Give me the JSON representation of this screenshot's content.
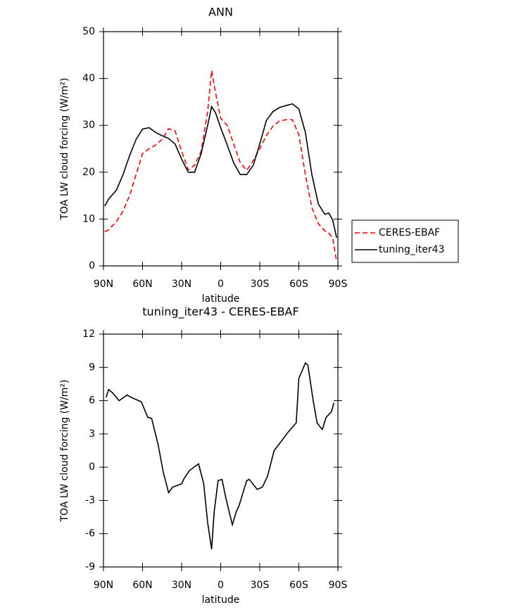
{
  "chart_data": [
    {
      "type": "line",
      "title": "ANN",
      "x_label": "latitude",
      "y_label": "TOA LW cloud forcing (W/m²)",
      "xlim": [
        90,
        -90
      ],
      "xticks": [
        {
          "value": 90,
          "label": "90N"
        },
        {
          "value": 60,
          "label": "60N"
        },
        {
          "value": 30,
          "label": "30N"
        },
        0,
        {
          "value": -30,
          "label": "30S"
        },
        {
          "value": -60,
          "label": "60S"
        },
        {
          "value": -90,
          "label": "90S"
        }
      ],
      "ylim": [
        0,
        50
      ],
      "yticks": [
        0,
        10,
        20,
        30,
        40,
        50
      ],
      "legend": "right",
      "x": [
        89,
        86,
        80,
        75,
        70,
        65,
        60,
        55,
        50,
        45,
        40,
        35,
        30,
        25,
        20,
        15,
        10,
        7,
        4,
        0,
        -5,
        -10,
        -15,
        -20,
        -25,
        -30,
        -35,
        -40,
        -45,
        -50,
        -55,
        -60,
        -65,
        -70,
        -75,
        -80,
        -83,
        -86,
        -89
      ],
      "series": [
        {
          "name": "CERES-EBAF",
          "color": "#ff0000",
          "style": "dashed",
          "values": [
            7.3,
            7.7,
            9.5,
            11.7,
            15,
            19.5,
            24,
            25,
            25.8,
            27,
            29.3,
            28.8,
            24.5,
            20.5,
            21.5,
            24.5,
            33,
            41.7,
            37,
            31.5,
            30,
            26,
            22,
            20.4,
            22.5,
            25,
            27.8,
            29.8,
            30.9,
            31.2,
            31.2,
            28,
            19.5,
            12.5,
            9,
            7.5,
            7,
            6,
            0.9
          ]
        },
        {
          "name": "tuning_iter43",
          "color": "#000000",
          "style": "solid",
          "values": [
            12.8,
            14.3,
            16.2,
            19.5,
            23.5,
            27,
            29.2,
            29.5,
            28.5,
            27.8,
            27.2,
            26,
            22.8,
            20,
            20,
            24,
            30,
            34,
            32.7,
            29.5,
            25.8,
            22,
            19.5,
            19.5,
            21.5,
            26,
            31,
            32.9,
            33.8,
            34.2,
            34.6,
            33.5,
            28.5,
            19.5,
            13.2,
            11,
            11.3,
            9.8,
            6
          ]
        }
      ]
    },
    {
      "type": "line",
      "title": "tuning_iter43 - CERES-EBAF",
      "x_label": "latitude",
      "y_label": "TOA LW cloud forcing (W/m²)",
      "xlim": [
        90,
        -90
      ],
      "xticks": [
        {
          "value": 90,
          "label": "90N"
        },
        {
          "value": 60,
          "label": "60N"
        },
        {
          "value": 30,
          "label": "30N"
        },
        0,
        {
          "value": -30,
          "label": "30S"
        },
        {
          "value": -60,
          "label": "60S"
        },
        {
          "value": -90,
          "label": "90S"
        }
      ],
      "ylim": [
        -9,
        12
      ],
      "yticks": [
        -9,
        -6,
        -3,
        0,
        3,
        6,
        9,
        12
      ],
      "x": [
        88,
        86,
        83,
        78,
        72,
        67,
        61,
        56,
        53,
        48,
        44,
        40,
        37,
        30,
        28,
        24,
        17,
        13,
        10,
        7,
        5,
        2,
        -1,
        -4,
        -9,
        -12,
        -14,
        -20,
        -22,
        -28,
        -32,
        -36,
        -41,
        -47,
        -52,
        -58,
        -60,
        -65,
        -67,
        -71,
        -74,
        -78,
        -81,
        -85,
        -87
      ],
      "series": [
        {
          "color": "#000000",
          "style": "solid",
          "values": [
            6.3,
            7,
            6.7,
            6,
            6.5,
            6.2,
            5.9,
            4.5,
            4.4,
            2,
            -0.5,
            -2.3,
            -1.8,
            -1.5,
            -1,
            -0.3,
            0.3,
            -1.5,
            -5,
            -7.4,
            -4,
            -1.2,
            -1.1,
            -2.8,
            -5.2,
            -4,
            -3.5,
            -1.2,
            -1.1,
            -2,
            -1.8,
            -0.8,
            1.5,
            2.4,
            3.2,
            4,
            8,
            9.4,
            9.2,
            6,
            4,
            3.4,
            4.5,
            5,
            5.8
          ]
        }
      ]
    }
  ]
}
